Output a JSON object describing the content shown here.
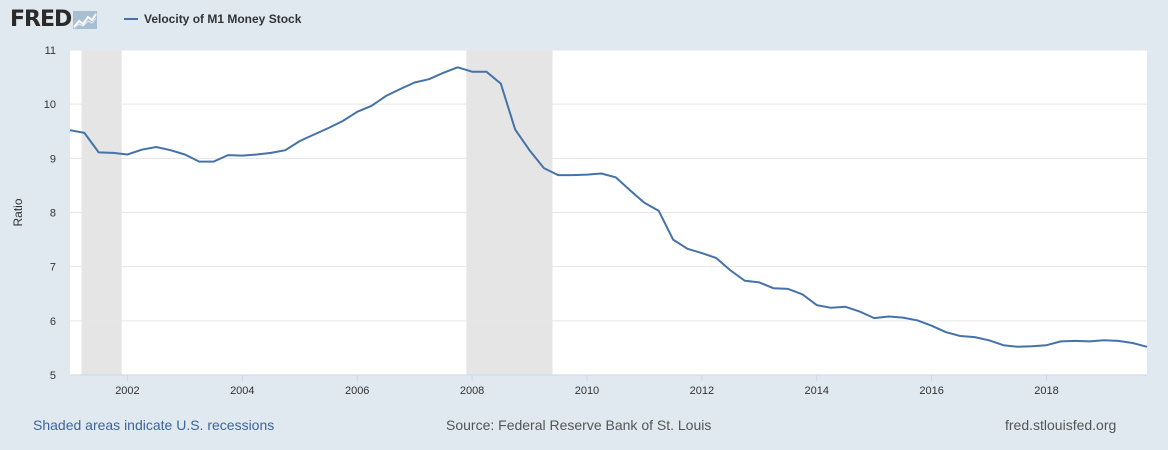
{
  "header": {
    "logo_text": "FRED",
    "logo_icon": "line-chart-icon",
    "legend_label": "Velocity of M1 Money Stock"
  },
  "footer": {
    "recessions_note": "Shaded areas indicate U.S. recessions",
    "source": "Source: Federal Reserve Bank of St. Louis",
    "site": "fred.stlouisfed.org"
  },
  "colors": {
    "line": "#4572a7",
    "recession": "#e5e5e5",
    "plot_bg": "#ffffff",
    "page_bg": "#e1e9f0"
  },
  "chart_data": {
    "type": "line",
    "title": "",
    "xlabel": "",
    "ylabel": "Ratio",
    "xlim": [
      2001.0,
      2019.75
    ],
    "ylim": [
      5,
      11
    ],
    "grid": true,
    "legend_placement": "top-left",
    "x_ticks": [
      2002,
      2004,
      2006,
      2008,
      2010,
      2012,
      2014,
      2016,
      2018
    ],
    "y_ticks": [
      5,
      6,
      7,
      8,
      9,
      10,
      11
    ],
    "recessions": [
      {
        "start": 2001.2,
        "end": 2001.9
      },
      {
        "start": 2007.9,
        "end": 2009.4
      }
    ],
    "series": [
      {
        "name": "Velocity of M1 Money Stock",
        "x": [
          2001.0,
          2001.25,
          2001.5,
          2001.75,
          2002.0,
          2002.25,
          2002.5,
          2002.75,
          2003.0,
          2003.25,
          2003.5,
          2003.75,
          2004.0,
          2004.25,
          2004.5,
          2004.75,
          2005.0,
          2005.25,
          2005.5,
          2005.75,
          2006.0,
          2006.25,
          2006.5,
          2006.75,
          2007.0,
          2007.25,
          2007.5,
          2007.75,
          2008.0,
          2008.25,
          2008.5,
          2008.75,
          2009.0,
          2009.25,
          2009.5,
          2009.75,
          2010.0,
          2010.25,
          2010.5,
          2010.75,
          2011.0,
          2011.25,
          2011.5,
          2011.75,
          2012.0,
          2012.25,
          2012.5,
          2012.75,
          2013.0,
          2013.25,
          2013.5,
          2013.75,
          2014.0,
          2014.25,
          2014.5,
          2014.75,
          2015.0,
          2015.25,
          2015.5,
          2015.75,
          2016.0,
          2016.25,
          2016.5,
          2016.75,
          2017.0,
          2017.25,
          2017.5,
          2017.75,
          2018.0,
          2018.25,
          2018.5,
          2018.75,
          2019.0,
          2019.25,
          2019.5,
          2019.75
        ],
        "values": [
          9.52,
          9.47,
          9.11,
          9.1,
          9.07,
          9.16,
          9.21,
          9.15,
          9.07,
          8.94,
          8.94,
          9.06,
          9.05,
          9.07,
          9.1,
          9.15,
          9.32,
          9.44,
          9.56,
          9.69,
          9.86,
          9.97,
          10.15,
          10.28,
          10.4,
          10.46,
          10.58,
          10.68,
          10.6,
          10.6,
          10.38,
          9.53,
          9.15,
          8.82,
          8.69,
          8.69,
          8.7,
          8.72,
          8.65,
          8.41,
          8.18,
          8.03,
          7.5,
          7.33,
          7.25,
          7.16,
          6.93,
          6.74,
          6.71,
          6.6,
          6.59,
          6.49,
          6.29,
          6.24,
          6.26,
          6.17,
          6.05,
          6.08,
          6.06,
          6.01,
          5.91,
          5.79,
          5.72,
          5.7,
          5.64,
          5.55,
          5.52,
          5.53,
          5.55,
          5.62,
          5.63,
          5.62,
          5.64,
          5.63,
          5.59,
          5.52
        ]
      }
    ]
  }
}
